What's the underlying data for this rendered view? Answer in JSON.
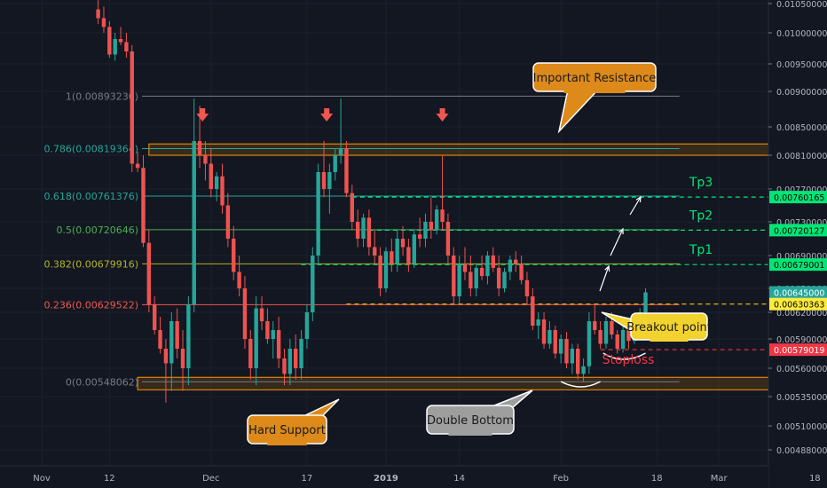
{
  "chart_data": {
    "type": "candlestick",
    "title": "",
    "xlabel": "",
    "ylabel": "",
    "ylim": [
      0.0047,
      0.0105
    ],
    "y_ticks": [
      "0.01050000",
      "0.01000000",
      "0.00950000",
      "0.00900000",
      "0.00850000",
      "0.00810000",
      "0.00770000",
      "0.00730000",
      "0.00690000",
      "0.00650000",
      "0.00620000",
      "0.00590000",
      "0.00560000",
      "0.00535000",
      "0.00510000",
      "0.00488000"
    ],
    "x_ticks": [
      {
        "label": "Nov",
        "day": 0
      },
      {
        "label": "12",
        "day": 12
      },
      {
        "label": "Dec",
        "day": 30
      },
      {
        "label": "17",
        "day": 47
      },
      {
        "label": "2019",
        "day": 61,
        "bold": true
      },
      {
        "label": "14",
        "day": 74
      },
      {
        "label": "Feb",
        "day": 92
      },
      {
        "label": "18",
        "day": 109
      },
      {
        "label": "Mar",
        "day": 120
      },
      {
        "label": "18",
        "day": 137
      }
    ],
    "fib_levels": [
      {
        "ratio": 1,
        "value": 0.0089323,
        "label": "1(0.00893230)",
        "color": "#787b86"
      },
      {
        "ratio": 0.786,
        "value": 0.00819364,
        "label": "0.786(0.00819364)",
        "color": "#26a69a"
      },
      {
        "ratio": 0.618,
        "value": 0.00761376,
        "label": "0.618(0.00761376)",
        "color": "#26a69a"
      },
      {
        "ratio": 0.5,
        "value": 0.00720646,
        "label": "0.5(0.00720646)",
        "color": "#4caf50"
      },
      {
        "ratio": 0.382,
        "value": 0.00679916,
        "label": "0.382(0.00679916)",
        "color": "#b2b52a"
      },
      {
        "ratio": 0.236,
        "value": 0.00629522,
        "label": "0.236(0.00629522)",
        "color": "#f0574e"
      },
      {
        "ratio": 0,
        "value": 0.00548062,
        "label": "0(0.00548062)",
        "color": "#787b86"
      }
    ],
    "price_tags": [
      {
        "label": "0.00760165",
        "value": 0.00760165,
        "bg": "#00e676",
        "fg": "#000000"
      },
      {
        "label": "0.00720127",
        "value": 0.00720127,
        "bg": "#00e676",
        "fg": "#000000"
      },
      {
        "label": "0.00679001",
        "value": 0.00679001,
        "bg": "#00e676",
        "fg": "#000000"
      },
      {
        "label": "0.00645000",
        "value": 0.00645,
        "bg": "#26a69a",
        "fg": "#ffffff"
      },
      {
        "label": "0.00630363",
        "value": 0.00630363,
        "bg": "#ffeb3b",
        "fg": "#000000"
      },
      {
        "label": "0.00579019",
        "value": 0.00579019,
        "bg": "#f23645",
        "fg": "#ffffff"
      }
    ],
    "targets": [
      {
        "label": "Tp3",
        "value": 0.00760165
      },
      {
        "label": "Tp2",
        "value": 0.00720127
      },
      {
        "label": "Tp1",
        "value": 0.00679001
      }
    ],
    "breakout_value": 0.00630363,
    "stoploss": {
      "label": "Stoploss",
      "value": 0.00579019
    },
    "zones": [
      {
        "name": "resistance",
        "top": 0.00826,
        "bottom": 0.0081,
        "start_day": 19,
        "end_day": 138
      },
      {
        "name": "support",
        "top": 0.00552,
        "bottom": 0.00541,
        "start_day": 17,
        "end_day": 138
      }
    ],
    "annotations": [
      {
        "name": "important-resistance",
        "text": "Important Resistance"
      },
      {
        "name": "hard-support",
        "text": "Hard Support"
      },
      {
        "name": "double-bottom",
        "text": "Double Bottom"
      },
      {
        "name": "breakout-point",
        "text": "Breakout point"
      }
    ],
    "candles": [
      {
        "day": 10,
        "o": 0.0104,
        "h": 0.0106,
        "l": 0.01015,
        "c": 0.01025
      },
      {
        "day": 11,
        "o": 0.01025,
        "h": 0.01045,
        "l": 0.01,
        "c": 0.0101
      },
      {
        "day": 12,
        "o": 0.0101,
        "h": 0.0102,
        "l": 0.0096,
        "c": 0.00965
      },
      {
        "day": 13,
        "o": 0.00965,
        "h": 0.01,
        "l": 0.00955,
        "c": 0.0099
      },
      {
        "day": 14,
        "o": 0.0099,
        "h": 0.0101,
        "l": 0.0098,
        "c": 0.00985
      },
      {
        "day": 15,
        "o": 0.00985,
        "h": 0.01,
        "l": 0.0096,
        "c": 0.0097
      },
      {
        "day": 16,
        "o": 0.0097,
        "h": 0.0098,
        "l": 0.0079,
        "c": 0.008
      },
      {
        "day": 17,
        "o": 0.008,
        "h": 0.00815,
        "l": 0.0079,
        "c": 0.00795
      },
      {
        "day": 18,
        "o": 0.00795,
        "h": 0.0081,
        "l": 0.007,
        "c": 0.00705
      },
      {
        "day": 19,
        "o": 0.00705,
        "h": 0.0072,
        "l": 0.0062,
        "c": 0.0063
      },
      {
        "day": 20,
        "o": 0.0063,
        "h": 0.0064,
        "l": 0.00595,
        "c": 0.006
      },
      {
        "day": 21,
        "o": 0.006,
        "h": 0.00615,
        "l": 0.00575,
        "c": 0.0058
      },
      {
        "day": 22,
        "o": 0.0058,
        "h": 0.0059,
        "l": 0.0053,
        "c": 0.00565
      },
      {
        "day": 23,
        "o": 0.00565,
        "h": 0.0062,
        "l": 0.0054,
        "c": 0.0061
      },
      {
        "day": 24,
        "o": 0.0061,
        "h": 0.00625,
        "l": 0.0057,
        "c": 0.0058
      },
      {
        "day": 25,
        "o": 0.0058,
        "h": 0.006,
        "l": 0.0054,
        "c": 0.0056
      },
      {
        "day": 26,
        "o": 0.0056,
        "h": 0.0064,
        "l": 0.00545,
        "c": 0.0063
      },
      {
        "day": 27,
        "o": 0.0063,
        "h": 0.0089,
        "l": 0.0062,
        "c": 0.0083
      },
      {
        "day": 28,
        "o": 0.0083,
        "h": 0.0088,
        "l": 0.00795,
        "c": 0.0081
      },
      {
        "day": 29,
        "o": 0.0081,
        "h": 0.0083,
        "l": 0.0078,
        "c": 0.008
      },
      {
        "day": 30,
        "o": 0.008,
        "h": 0.0082,
        "l": 0.0076,
        "c": 0.0077
      },
      {
        "day": 31,
        "o": 0.0077,
        "h": 0.0079,
        "l": 0.00755,
        "c": 0.00785
      },
      {
        "day": 32,
        "o": 0.00785,
        "h": 0.008,
        "l": 0.0074,
        "c": 0.0075
      },
      {
        "day": 33,
        "o": 0.0075,
        "h": 0.00765,
        "l": 0.007,
        "c": 0.0071
      },
      {
        "day": 34,
        "o": 0.0071,
        "h": 0.00725,
        "l": 0.0066,
        "c": 0.0067
      },
      {
        "day": 35,
        "o": 0.0067,
        "h": 0.0069,
        "l": 0.0064,
        "c": 0.0065
      },
      {
        "day": 36,
        "o": 0.0065,
        "h": 0.00665,
        "l": 0.0058,
        "c": 0.0059
      },
      {
        "day": 37,
        "o": 0.0059,
        "h": 0.006,
        "l": 0.0055,
        "c": 0.0056
      },
      {
        "day": 38,
        "o": 0.0056,
        "h": 0.0064,
        "l": 0.00545,
        "c": 0.00625
      },
      {
        "day": 39,
        "o": 0.00625,
        "h": 0.0064,
        "l": 0.006,
        "c": 0.0061
      },
      {
        "day": 40,
        "o": 0.0061,
        "h": 0.00625,
        "l": 0.00585,
        "c": 0.0059
      },
      {
        "day": 41,
        "o": 0.0059,
        "h": 0.0061,
        "l": 0.0057,
        "c": 0.006
      },
      {
        "day": 42,
        "o": 0.006,
        "h": 0.00615,
        "l": 0.0056,
        "c": 0.0057
      },
      {
        "day": 43,
        "o": 0.0057,
        "h": 0.0058,
        "l": 0.00545,
        "c": 0.00555
      },
      {
        "day": 44,
        "o": 0.00555,
        "h": 0.0059,
        "l": 0.00545,
        "c": 0.0058
      },
      {
        "day": 45,
        "o": 0.0058,
        "h": 0.00595,
        "l": 0.0055,
        "c": 0.0056
      },
      {
        "day": 46,
        "o": 0.0056,
        "h": 0.006,
        "l": 0.0055,
        "c": 0.0059
      },
      {
        "day": 47,
        "o": 0.0059,
        "h": 0.0063,
        "l": 0.0058,
        "c": 0.0062
      },
      {
        "day": 48,
        "o": 0.0062,
        "h": 0.007,
        "l": 0.0061,
        "c": 0.0069
      },
      {
        "day": 49,
        "o": 0.0069,
        "h": 0.008,
        "l": 0.0068,
        "c": 0.0079
      },
      {
        "day": 50,
        "o": 0.0079,
        "h": 0.0083,
        "l": 0.0076,
        "c": 0.0077
      },
      {
        "day": 51,
        "o": 0.0077,
        "h": 0.008,
        "l": 0.0074,
        "c": 0.0079
      },
      {
        "day": 52,
        "o": 0.0079,
        "h": 0.0082,
        "l": 0.0078,
        "c": 0.0081
      },
      {
        "day": 53,
        "o": 0.0081,
        "h": 0.0089,
        "l": 0.008,
        "c": 0.0082
      },
      {
        "day": 54,
        "o": 0.0082,
        "h": 0.0083,
        "l": 0.0076,
        "c": 0.00765
      },
      {
        "day": 55,
        "o": 0.00765,
        "h": 0.00775,
        "l": 0.0072,
        "c": 0.0073
      },
      {
        "day": 56,
        "o": 0.0073,
        "h": 0.00745,
        "l": 0.007,
        "c": 0.0071
      },
      {
        "day": 57,
        "o": 0.0071,
        "h": 0.0074,
        "l": 0.007,
        "c": 0.00735
      },
      {
        "day": 58,
        "o": 0.00735,
        "h": 0.00745,
        "l": 0.0069,
        "c": 0.007
      },
      {
        "day": 59,
        "o": 0.007,
        "h": 0.0072,
        "l": 0.0068,
        "c": 0.0069
      },
      {
        "day": 60,
        "o": 0.0069,
        "h": 0.007,
        "l": 0.0064,
        "c": 0.0065
      },
      {
        "day": 61,
        "o": 0.0065,
        "h": 0.007,
        "l": 0.00645,
        "c": 0.00695
      },
      {
        "day": 62,
        "o": 0.00695,
        "h": 0.0071,
        "l": 0.0067,
        "c": 0.0068
      },
      {
        "day": 63,
        "o": 0.0068,
        "h": 0.0072,
        "l": 0.0067,
        "c": 0.0071
      },
      {
        "day": 64,
        "o": 0.0071,
        "h": 0.00725,
        "l": 0.0069,
        "c": 0.007
      },
      {
        "day": 65,
        "o": 0.007,
        "h": 0.0071,
        "l": 0.0067,
        "c": 0.0068
      },
      {
        "day": 66,
        "o": 0.0068,
        "h": 0.0072,
        "l": 0.00675,
        "c": 0.00715
      },
      {
        "day": 67,
        "o": 0.00715,
        "h": 0.00735,
        "l": 0.007,
        "c": 0.0071
      },
      {
        "day": 68,
        "o": 0.0071,
        "h": 0.0074,
        "l": 0.007,
        "c": 0.0073
      },
      {
        "day": 69,
        "o": 0.0073,
        "h": 0.0076,
        "l": 0.0071,
        "c": 0.0072
      },
      {
        "day": 70,
        "o": 0.0072,
        "h": 0.0075,
        "l": 0.00715,
        "c": 0.00745
      },
      {
        "day": 71,
        "o": 0.00745,
        "h": 0.0081,
        "l": 0.0072,
        "c": 0.0073
      },
      {
        "day": 72,
        "o": 0.0073,
        "h": 0.0074,
        "l": 0.0068,
        "c": 0.0069
      },
      {
        "day": 73,
        "o": 0.0069,
        "h": 0.007,
        "l": 0.0063,
        "c": 0.0064
      },
      {
        "day": 74,
        "o": 0.0064,
        "h": 0.0069,
        "l": 0.0063,
        "c": 0.0068
      },
      {
        "day": 75,
        "o": 0.0068,
        "h": 0.007,
        "l": 0.0066,
        "c": 0.0067
      },
      {
        "day": 76,
        "o": 0.0067,
        "h": 0.0069,
        "l": 0.0064,
        "c": 0.0065
      },
      {
        "day": 77,
        "o": 0.0065,
        "h": 0.0068,
        "l": 0.0064,
        "c": 0.00675
      },
      {
        "day": 78,
        "o": 0.00675,
        "h": 0.0069,
        "l": 0.0066,
        "c": 0.00665
      },
      {
        "day": 79,
        "o": 0.00665,
        "h": 0.00695,
        "l": 0.00655,
        "c": 0.0069
      },
      {
        "day": 80,
        "o": 0.0069,
        "h": 0.007,
        "l": 0.0067,
        "c": 0.00675
      },
      {
        "day": 81,
        "o": 0.00675,
        "h": 0.0069,
        "l": 0.0064,
        "c": 0.0065
      },
      {
        "day": 82,
        "o": 0.0065,
        "h": 0.00675,
        "l": 0.00645,
        "c": 0.0067
      },
      {
        "day": 83,
        "o": 0.0067,
        "h": 0.0069,
        "l": 0.0066,
        "c": 0.00685
      },
      {
        "day": 84,
        "o": 0.00685,
        "h": 0.00695,
        "l": 0.0067,
        "c": 0.0068
      },
      {
        "day": 85,
        "o": 0.0068,
        "h": 0.0069,
        "l": 0.00655,
        "c": 0.0066
      },
      {
        "day": 86,
        "o": 0.0066,
        "h": 0.0067,
        "l": 0.0063,
        "c": 0.0064
      },
      {
        "day": 87,
        "o": 0.0064,
        "h": 0.0065,
        "l": 0.006,
        "c": 0.00605
      },
      {
        "day": 88,
        "o": 0.00605,
        "h": 0.0062,
        "l": 0.0059,
        "c": 0.00612
      },
      {
        "day": 89,
        "o": 0.00612,
        "h": 0.0062,
        "l": 0.0058,
        "c": 0.00585
      },
      {
        "day": 90,
        "o": 0.00585,
        "h": 0.0061,
        "l": 0.0058,
        "c": 0.006
      },
      {
        "day": 91,
        "o": 0.006,
        "h": 0.00605,
        "l": 0.0057,
        "c": 0.00575
      },
      {
        "day": 92,
        "o": 0.00575,
        "h": 0.00595,
        "l": 0.00565,
        "c": 0.0059
      },
      {
        "day": 93,
        "o": 0.0059,
        "h": 0.00598,
        "l": 0.0056,
        "c": 0.00565
      },
      {
        "day": 94,
        "o": 0.00565,
        "h": 0.00585,
        "l": 0.00555,
        "c": 0.0058
      },
      {
        "day": 95,
        "o": 0.0058,
        "h": 0.00585,
        "l": 0.0055,
        "c": 0.00555
      },
      {
        "day": 96,
        "o": 0.00555,
        "h": 0.0057,
        "l": 0.00548,
        "c": 0.00562
      },
      {
        "day": 97,
        "o": 0.00562,
        "h": 0.0062,
        "l": 0.00555,
        "c": 0.0061
      },
      {
        "day": 98,
        "o": 0.0061,
        "h": 0.0063,
        "l": 0.00595,
        "c": 0.006
      },
      {
        "day": 99,
        "o": 0.006,
        "h": 0.0061,
        "l": 0.0058,
        "c": 0.00585
      },
      {
        "day": 100,
        "o": 0.00585,
        "h": 0.00615,
        "l": 0.0058,
        "c": 0.0061
      },
      {
        "day": 101,
        "o": 0.0061,
        "h": 0.0062,
        "l": 0.0059,
        "c": 0.00595
      },
      {
        "day": 102,
        "o": 0.00595,
        "h": 0.006,
        "l": 0.00575,
        "c": 0.0058
      },
      {
        "day": 103,
        "o": 0.0058,
        "h": 0.00605,
        "l": 0.00576,
        "c": 0.006
      },
      {
        "day": 104,
        "o": 0.006,
        "h": 0.00605,
        "l": 0.0058,
        "c": 0.00588
      },
      {
        "day": 105,
        "o": 0.00588,
        "h": 0.0061,
        "l": 0.00585,
        "c": 0.00605
      },
      {
        "day": 106,
        "o": 0.00605,
        "h": 0.00625,
        "l": 0.006,
        "c": 0.0062
      },
      {
        "day": 107,
        "o": 0.0062,
        "h": 0.0065,
        "l": 0.00615,
        "c": 0.00645
      }
    ]
  }
}
